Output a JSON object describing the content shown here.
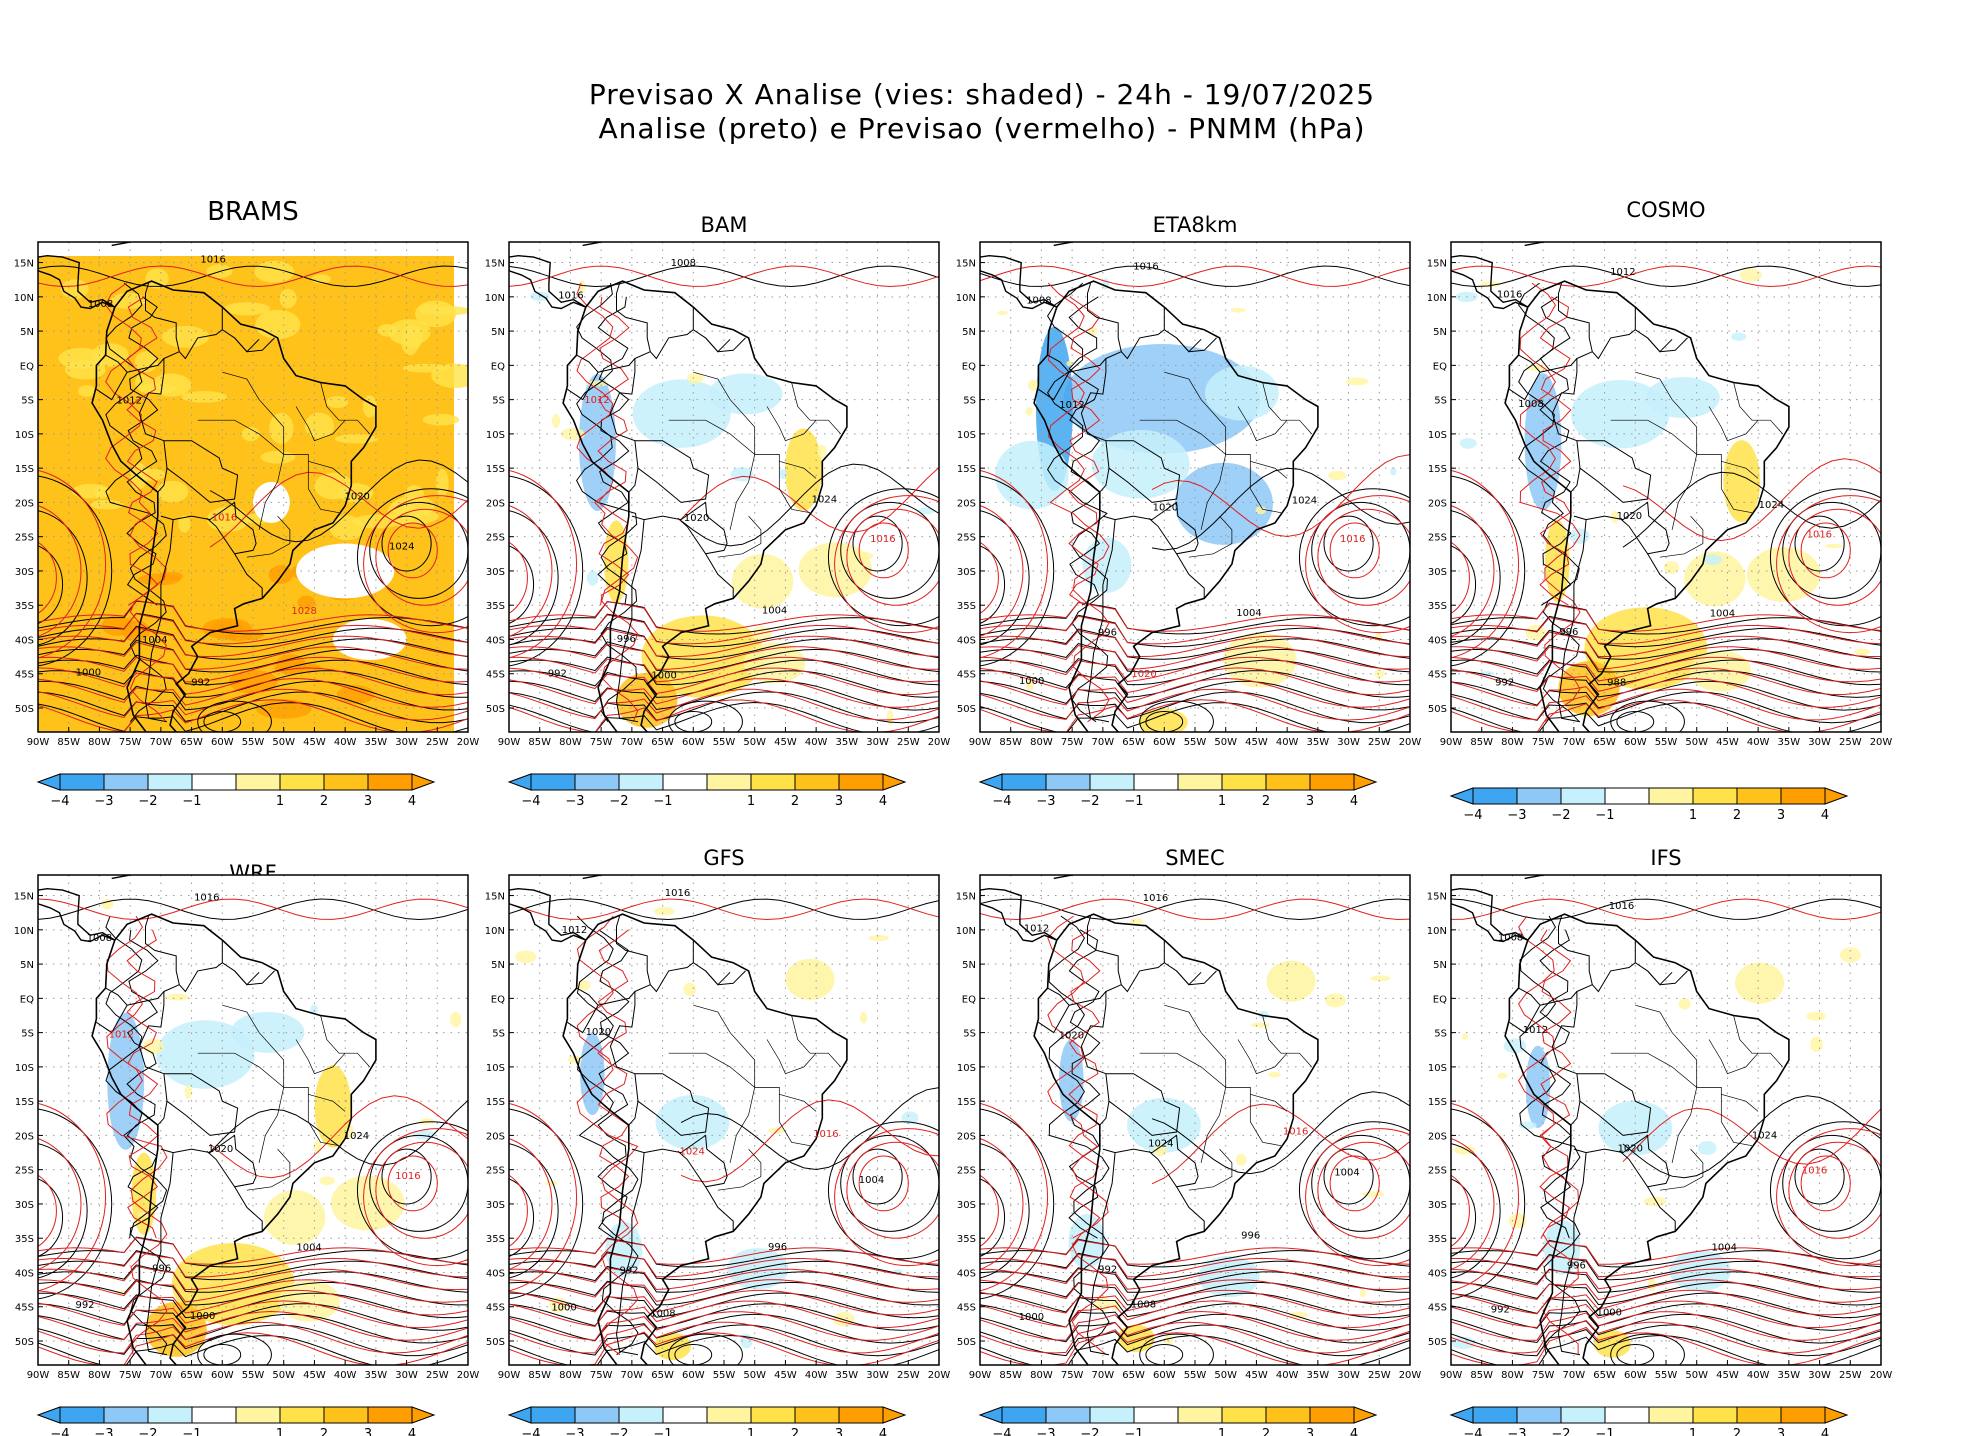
{
  "figure": {
    "title_line1": "Previsao X Analise (vies: shaded) - 24h - 19/07/2025",
    "title_line2": "Analise (preto) e Previsao (vermelho) - PNMM (hPa)"
  },
  "axes": {
    "lat_labels": [
      "15N",
      "10N",
      "5N",
      "EQ",
      "5S",
      "10S",
      "15S",
      "20S",
      "25S",
      "30S",
      "35S",
      "40S",
      "45S",
      "50S"
    ],
    "lon_labels": [
      "90W",
      "85W",
      "80W",
      "75W",
      "70W",
      "65W",
      "60W",
      "55W",
      "50W",
      "45W",
      "40W",
      "35W",
      "30W",
      "25W",
      "20W"
    ]
  },
  "colorbar": {
    "labels": [
      "-4",
      "-3",
      "-2",
      "-1",
      "1",
      "2",
      "3",
      "4"
    ],
    "colors": [
      "#3ea6f0",
      "#8ec8f6",
      "#c6f0fb",
      "#ffffff",
      "#fff5a0",
      "#ffe24a",
      "#ffc21a",
      "#ff9e00"
    ]
  },
  "legend": {
    "analysis_color": "#000000",
    "forecast_color": "#e02020"
  },
  "panels": [
    {
      "name": "BRAMS",
      "bias_level": "strong-positive",
      "labels": [
        {
          "t": "1016",
          "c": "k"
        },
        {
          "t": "1008",
          "c": "k"
        },
        {
          "t": "1012",
          "c": "k"
        },
        {
          "t": "1016",
          "c": "r"
        },
        {
          "t": "1020",
          "c": "k"
        },
        {
          "t": "1024",
          "c": "k"
        },
        {
          "t": "1028",
          "c": "r"
        },
        {
          "t": "1004",
          "c": "k"
        },
        {
          "t": "1000",
          "c": "k"
        },
        {
          "t": "992",
          "c": "k"
        }
      ]
    },
    {
      "name": "BAM",
      "bias_level": "mixed",
      "labels": [
        {
          "t": "1008",
          "c": "k"
        },
        {
          "t": "1016",
          "c": "k"
        },
        {
          "t": "1012",
          "c": "r"
        },
        {
          "t": "1020",
          "c": "k"
        },
        {
          "t": "1024",
          "c": "k"
        },
        {
          "t": "1016",
          "c": "r"
        },
        {
          "t": "1004",
          "c": "k"
        },
        {
          "t": "996",
          "c": "k"
        },
        {
          "t": "992",
          "c": "k"
        },
        {
          "t": "1000",
          "c": "k"
        }
      ]
    },
    {
      "name": "ETA8km",
      "bias_level": "negative",
      "labels": [
        {
          "t": "1016",
          "c": "k"
        },
        {
          "t": "1008",
          "c": "k"
        },
        {
          "t": "1012",
          "c": "k"
        },
        {
          "t": "1020",
          "c": "k"
        },
        {
          "t": "1024",
          "c": "k"
        },
        {
          "t": "1016",
          "c": "r"
        },
        {
          "t": "1004",
          "c": "k"
        },
        {
          "t": "996",
          "c": "k"
        },
        {
          "t": "1000",
          "c": "k"
        },
        {
          "t": "1020",
          "c": "r"
        }
      ]
    },
    {
      "name": "COSMO",
      "bias_level": "mixed",
      "labels": [
        {
          "t": "1012",
          "c": "k"
        },
        {
          "t": "1016",
          "c": "k"
        },
        {
          "t": "1008",
          "c": "k"
        },
        {
          "t": "1020",
          "c": "k"
        },
        {
          "t": "1024",
          "c": "k"
        },
        {
          "t": "1016",
          "c": "r"
        },
        {
          "t": "1004",
          "c": "k"
        },
        {
          "t": "996",
          "c": "k"
        },
        {
          "t": "992",
          "c": "k"
        },
        {
          "t": "988",
          "c": "k"
        }
      ]
    },
    {
      "name": "WRF",
      "bias_level": "mixed",
      "labels": [
        {
          "t": "1016",
          "c": "k"
        },
        {
          "t": "1008",
          "c": "k"
        },
        {
          "t": "1012",
          "c": "r"
        },
        {
          "t": "1020",
          "c": "k"
        },
        {
          "t": "1024",
          "c": "k"
        },
        {
          "t": "1016",
          "c": "r"
        },
        {
          "t": "1004",
          "c": "k"
        },
        {
          "t": "996",
          "c": "k"
        },
        {
          "t": "992",
          "c": "k"
        },
        {
          "t": "1000",
          "c": "k"
        }
      ]
    },
    {
      "name": "GFS",
      "bias_level": "weak",
      "labels": [
        {
          "t": "1016",
          "c": "k"
        },
        {
          "t": "1012",
          "c": "k"
        },
        {
          "t": "1020",
          "c": "k"
        },
        {
          "t": "1024",
          "c": "r"
        },
        {
          "t": "1016",
          "c": "r"
        },
        {
          "t": "1004",
          "c": "k"
        },
        {
          "t": "996",
          "c": "k"
        },
        {
          "t": "992",
          "c": "k"
        },
        {
          "t": "1000",
          "c": "k"
        },
        {
          "t": "1008",
          "c": "k"
        }
      ]
    },
    {
      "name": "SMEC",
      "bias_level": "weak",
      "labels": [
        {
          "t": "1016",
          "c": "k"
        },
        {
          "t": "1012",
          "c": "k"
        },
        {
          "t": "1020",
          "c": "k"
        },
        {
          "t": "1024",
          "c": "k"
        },
        {
          "t": "1016",
          "c": "r"
        },
        {
          "t": "1004",
          "c": "k"
        },
        {
          "t": "996",
          "c": "k"
        },
        {
          "t": "992",
          "c": "k"
        },
        {
          "t": "1000",
          "c": "k"
        },
        {
          "t": "1008",
          "c": "k"
        }
      ]
    },
    {
      "name": "IFS",
      "bias_level": "weak",
      "labels": [
        {
          "t": "1016",
          "c": "k"
        },
        {
          "t": "1008",
          "c": "k"
        },
        {
          "t": "1012",
          "c": "k"
        },
        {
          "t": "1020",
          "c": "k"
        },
        {
          "t": "1024",
          "c": "k"
        },
        {
          "t": "1016",
          "c": "r"
        },
        {
          "t": "1004",
          "c": "k"
        },
        {
          "t": "996",
          "c": "k"
        },
        {
          "t": "992",
          "c": "k"
        },
        {
          "t": "1000",
          "c": "k"
        }
      ]
    }
  ]
}
